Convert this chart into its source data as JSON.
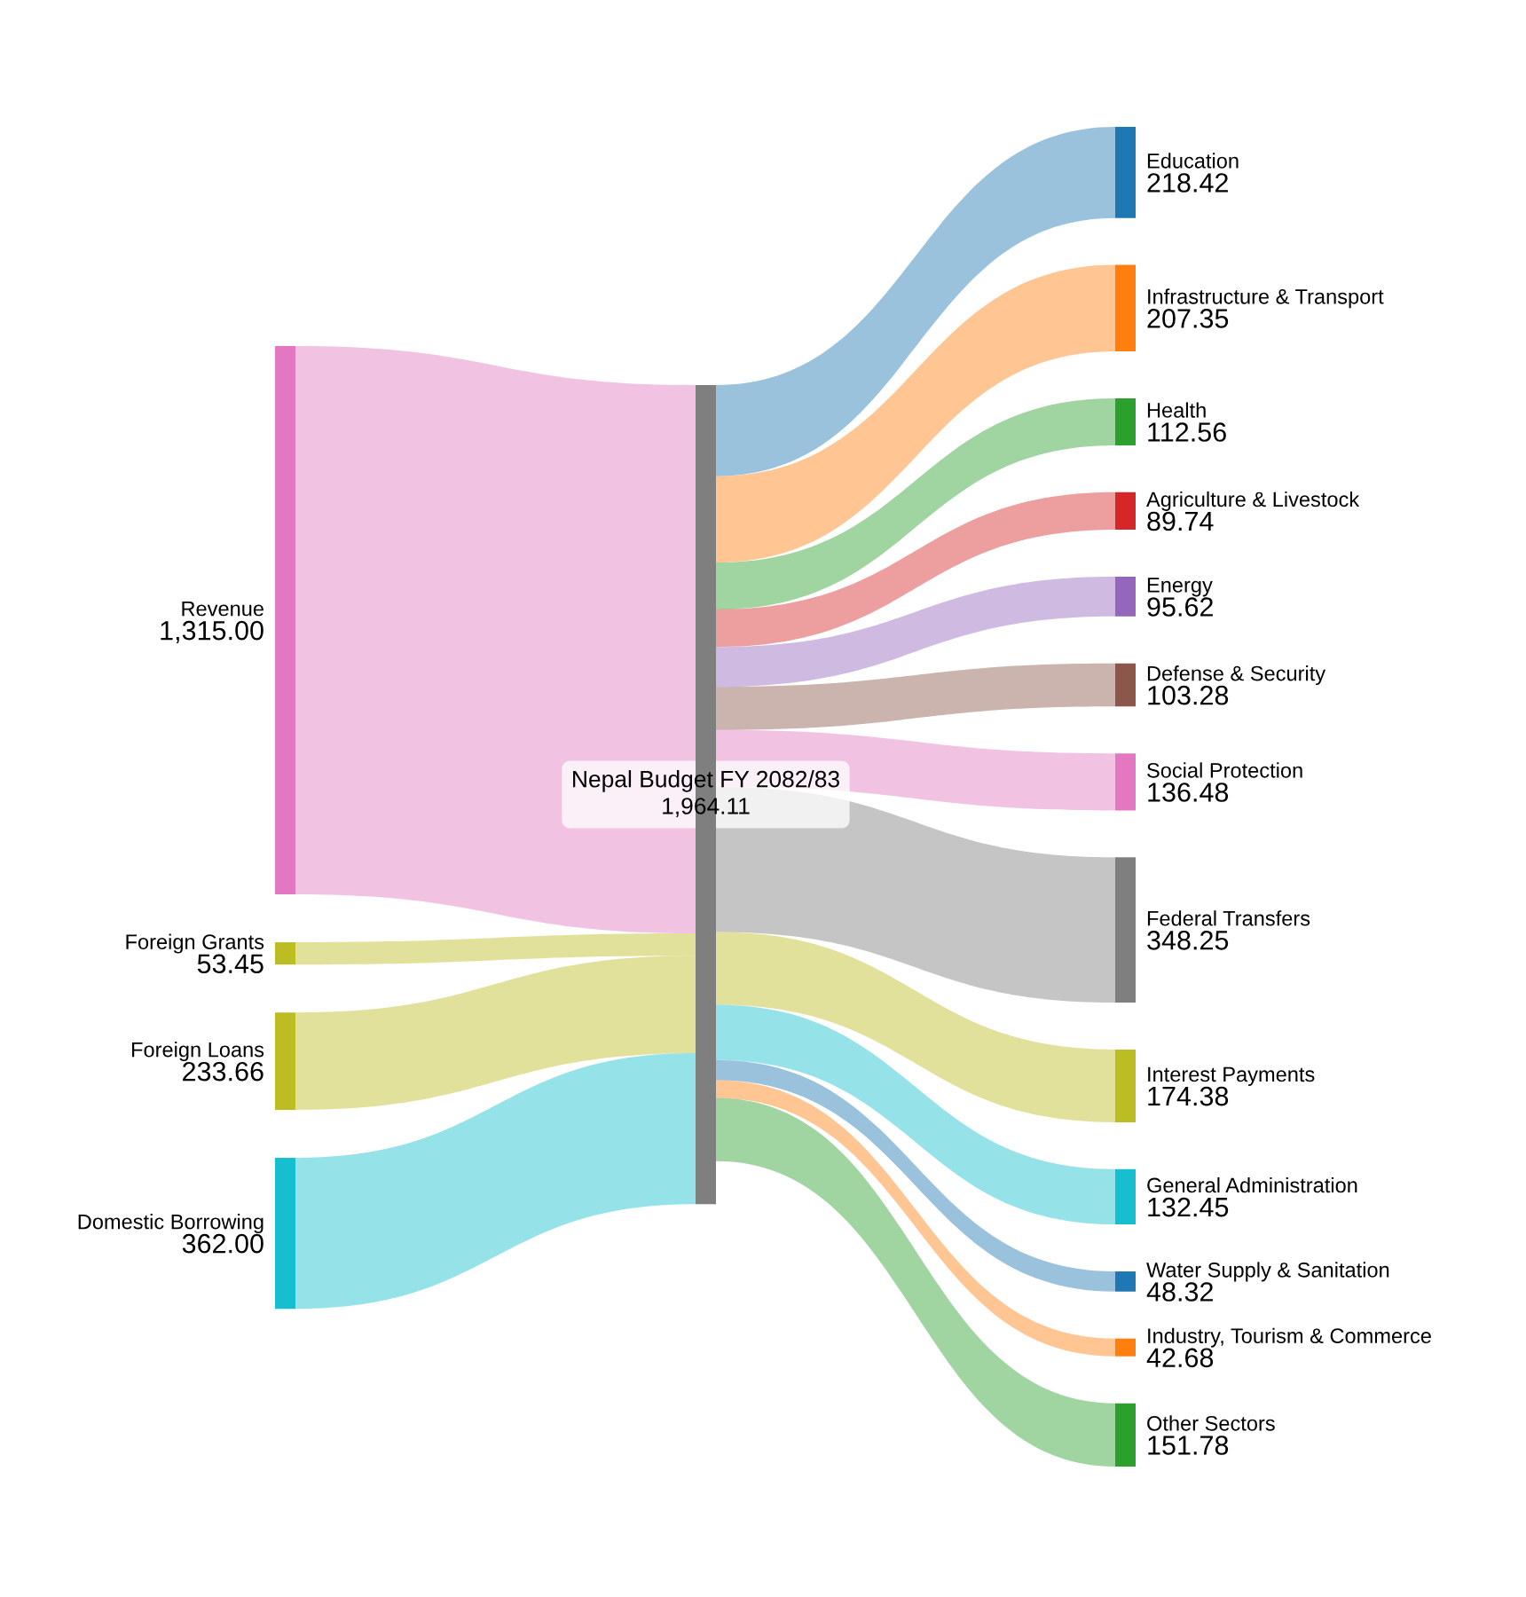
{
  "chart_data": {
    "type": "other",
    "categories": [
      "Revenue",
      "Foreign Grants",
      "Foreign Loans",
      "Domestic Borrowing",
      "Nepal Budget FY 2082/83",
      "Education",
      "Infrastructure & Transport",
      "Health",
      "Agriculture & Livestock",
      "Energy",
      "Defense & Security",
      "Social Protection",
      "Federal Transfers",
      "Interest Payments",
      "General Administration",
      "Water Supply & Sanitation",
      "Industry, Tourism & Commerce",
      "Other Sectors"
    ],
    "values": [
      1315.0,
      53.45,
      233.66,
      362.0,
      1964.11,
      218.42,
      207.35,
      112.56,
      89.74,
      95.62,
      103.28,
      136.48,
      348.25,
      174.38,
      132.45,
      48.32,
      42.68,
      151.78
    ],
    "value_labels": [
      "1,315.00",
      "53.45",
      "233.66",
      "362.00",
      "1,964.11",
      "218.42",
      "207.35",
      "112.56",
      "89.74",
      "95.62",
      "103.28",
      "136.48",
      "348.25",
      "174.38",
      "132.45",
      "48.32",
      "42.68",
      "151.78"
    ],
    "colors": [
      "#e377c2",
      "#bcbd22",
      "#bcbd22",
      "#17becf",
      "#7f7f7f",
      "#1f77b4",
      "#ff7f0e",
      "#2ca02c",
      "#d62728",
      "#9467bd",
      "#8c564b",
      "#e377c2",
      "#7f7f7f",
      "#bcbd22",
      "#17becf",
      "#1f77b4",
      "#ff7f0e",
      "#2ca02c"
    ]
  }
}
